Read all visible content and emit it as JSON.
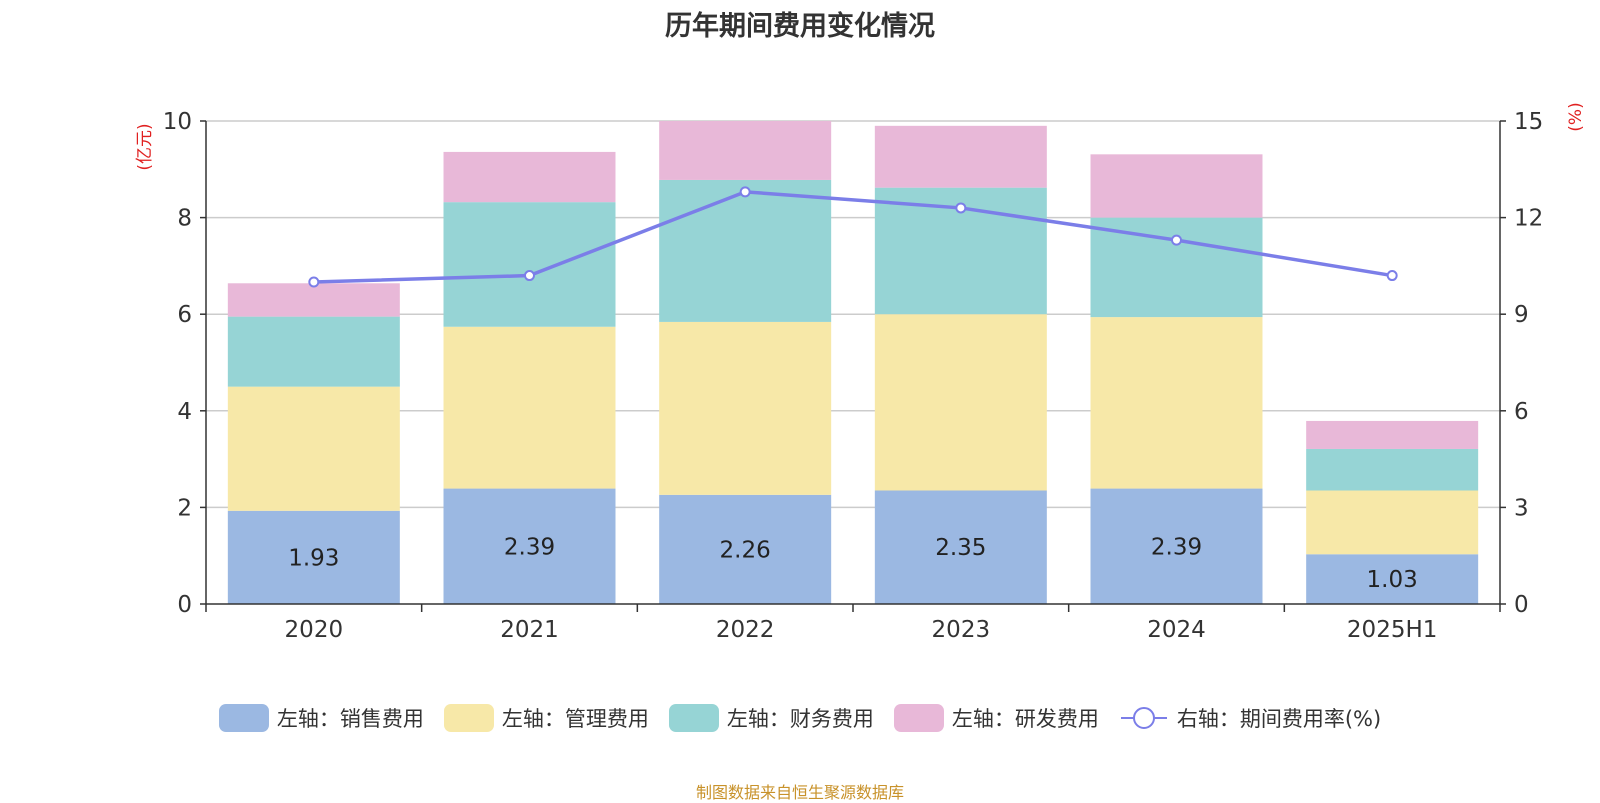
{
  "chart_data": {
    "type": "bar",
    "title": "历年期间费用变化情况",
    "categories": [
      "2020",
      "2021",
      "2022",
      "2023",
      "2024",
      "2025H1"
    ],
    "stacked": true,
    "y_left": {
      "label": "(亿元)",
      "ylim": [
        0,
        10
      ],
      "ticks": [
        "0",
        "2",
        "4",
        "6",
        "8",
        "10"
      ]
    },
    "y_right": {
      "label": "(%)",
      "ylim": [
        0,
        15
      ],
      "ticks": [
        "0",
        "3",
        "6",
        "9",
        "12",
        "15"
      ]
    },
    "series": [
      {
        "name": "左轴：销售费用",
        "kind": "bar",
        "axis": "left",
        "color": "#9bb8e2",
        "values": [
          1.93,
          2.39,
          2.26,
          2.35,
          2.39,
          1.03
        ],
        "labels": [
          "1.93",
          "2.39",
          "2.26",
          "2.35",
          "2.39",
          "1.03"
        ]
      },
      {
        "name": "左轴：管理费用",
        "kind": "bar",
        "axis": "left",
        "color": "#f7e8a8",
        "values": [
          2.57,
          3.35,
          3.58,
          3.65,
          3.55,
          1.32
        ]
      },
      {
        "name": "左轴：财务费用",
        "kind": "bar",
        "axis": "left",
        "color": "#96d4d5",
        "values": [
          1.45,
          2.58,
          2.94,
          2.62,
          2.06,
          0.86
        ]
      },
      {
        "name": "左轴：研发费用",
        "kind": "bar",
        "axis": "left",
        "color": "#e8b8d8",
        "values": [
          0.69,
          1.04,
          1.22,
          1.28,
          1.31,
          0.58
        ]
      },
      {
        "name": "右轴：期间费用率(%)",
        "kind": "line",
        "axis": "right",
        "color": "#7b7ee8",
        "values": [
          10.0,
          10.2,
          12.8,
          12.3,
          11.3,
          10.2
        ]
      }
    ],
    "grid": true,
    "legend_position": "bottom"
  },
  "source_note": "制图数据来自恒生聚源数据库"
}
